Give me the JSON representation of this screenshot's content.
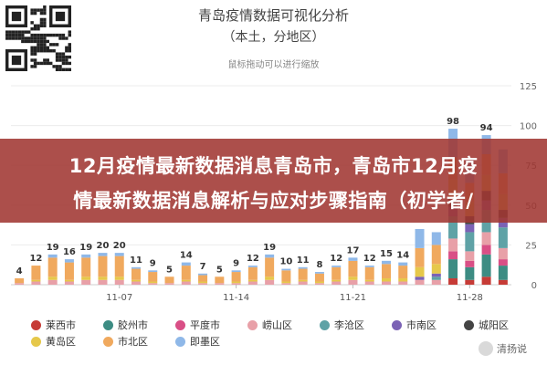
{
  "page": {
    "banner_line1": "12月疫情最新数据消息青岛市，青岛市12月疫",
    "banner_line2": "情最新数据消息解析与应对步骤指南（初学者/",
    "watermark": "清扬说"
  },
  "chart_data": {
    "type": "bar",
    "stacked": true,
    "title": "青岛疫情数据可视化分析",
    "subtitle": "（本土，分地区）",
    "hint": "鼠标拖动可以进行缩放",
    "xlabel": "",
    "ylabel": "",
    "ylim": [
      0,
      125
    ],
    "yticks": [
      0,
      25,
      50,
      75,
      100,
      125
    ],
    "xtick_labels": [
      "11-07",
      "11-14",
      "11-21",
      "11-28"
    ],
    "xtick_positions": [
      7,
      14,
      21,
      28
    ],
    "grid": true,
    "legend_position": "bottom",
    "x": [
      1,
      2,
      3,
      4,
      5,
      6,
      7,
      8,
      9,
      10,
      11,
      12,
      13,
      14,
      15,
      16,
      17,
      18,
      19,
      20,
      21,
      22,
      23,
      24,
      25,
      26,
      27,
      28,
      29,
      30
    ],
    "totals": [
      4,
      12,
      19,
      16,
      19,
      20,
      20,
      11,
      9,
      5,
      14,
      7,
      5,
      9,
      12,
      19,
      10,
      11,
      8,
      12,
      17,
      12,
      15,
      14,
      35,
      33,
      98,
      79,
      94,
      85
    ],
    "series": [
      {
        "name": "莱西市",
        "color": "#c63b36",
        "values": [
          0,
          0,
          0,
          0,
          0,
          0,
          0,
          0,
          0,
          0,
          0,
          0,
          0,
          0,
          0,
          0,
          0,
          0,
          0,
          0,
          0,
          0,
          0,
          0,
          0,
          0,
          4,
          3,
          5,
          3
        ]
      },
      {
        "name": "胶州市",
        "color": "#3d8c83",
        "values": [
          0,
          0,
          0,
          0,
          0,
          0,
          0,
          0,
          0,
          0,
          0,
          0,
          0,
          0,
          0,
          0,
          0,
          0,
          0,
          0,
          0,
          0,
          0,
          0,
          0,
          0,
          12,
          8,
          14,
          9
        ]
      },
      {
        "name": "平度市",
        "color": "#d94f86",
        "values": [
          0,
          0,
          0,
          0,
          0,
          0,
          0,
          0,
          0,
          0,
          0,
          0,
          0,
          0,
          0,
          0,
          0,
          0,
          0,
          0,
          0,
          0,
          0,
          0,
          0,
          0,
          5,
          4,
          6,
          4
        ]
      },
      {
        "name": "崂山区",
        "color": "#e8a0a8",
        "values": [
          1,
          2,
          3,
          2,
          3,
          3,
          3,
          2,
          1,
          1,
          2,
          1,
          1,
          1,
          2,
          3,
          1,
          2,
          1,
          2,
          3,
          2,
          2,
          2,
          3,
          3,
          8,
          6,
          8,
          7
        ]
      },
      {
        "name": "李沧区",
        "color": "#5fa2a6",
        "values": [
          0,
          0,
          0,
          0,
          0,
          0,
          0,
          0,
          0,
          0,
          0,
          0,
          0,
          0,
          0,
          0,
          0,
          0,
          0,
          0,
          0,
          0,
          0,
          0,
          0,
          2,
          14,
          12,
          14,
          13
        ]
      },
      {
        "name": "市南区",
        "color": "#7b62b5",
        "values": [
          0,
          0,
          0,
          0,
          0,
          0,
          0,
          0,
          0,
          0,
          0,
          0,
          0,
          0,
          0,
          0,
          0,
          0,
          0,
          0,
          0,
          0,
          0,
          0,
          2,
          2,
          6,
          5,
          6,
          6
        ]
      },
      {
        "name": "城阳区",
        "color": "#444444",
        "values": [
          0,
          0,
          0,
          0,
          0,
          0,
          0,
          0,
          0,
          0,
          0,
          0,
          0,
          0,
          0,
          0,
          0,
          0,
          0,
          0,
          0,
          0,
          0,
          0,
          0,
          0,
          6,
          5,
          6,
          5
        ]
      },
      {
        "name": "黄岛区",
        "color": "#e6c84a",
        "values": [
          0,
          1,
          2,
          1,
          2,
          2,
          2,
          1,
          1,
          0,
          1,
          1,
          0,
          1,
          1,
          2,
          1,
          1,
          1,
          1,
          2,
          1,
          2,
          2,
          6,
          6,
          11,
          9,
          10,
          10
        ]
      },
      {
        "name": "市北区",
        "color": "#f0a95e",
        "values": [
          3,
          9,
          12,
          11,
          12,
          13,
          13,
          7,
          6,
          4,
          9,
          4,
          4,
          6,
          8,
          12,
          7,
          7,
          5,
          8,
          10,
          8,
          9,
          8,
          12,
          12,
          14,
          12,
          13,
          13
        ]
      },
      {
        "name": "即墨区",
        "color": "#8fb8e8",
        "values": [
          0,
          0,
          2,
          2,
          2,
          2,
          2,
          1,
          1,
          0,
          2,
          1,
          0,
          1,
          1,
          2,
          1,
          1,
          1,
          1,
          2,
          1,
          2,
          2,
          12,
          8,
          18,
          15,
          12,
          15
        ]
      }
    ],
    "data_labels": {
      "1": 4,
      "2": 12,
      "3": 19,
      "4": 16,
      "5": 19,
      "6": 20,
      "7": 20,
      "8": 11,
      "9": 9,
      "10": 5,
      "11": 14,
      "12": 7,
      "13": 5,
      "14": 9,
      "15": 12,
      "16": 19,
      "17": 10,
      "18": 11,
      "19": 8,
      "20": 12,
      "21": 17,
      "22": 12,
      "23": 15,
      "24": 14,
      "27": 98,
      "29": 94
    }
  }
}
